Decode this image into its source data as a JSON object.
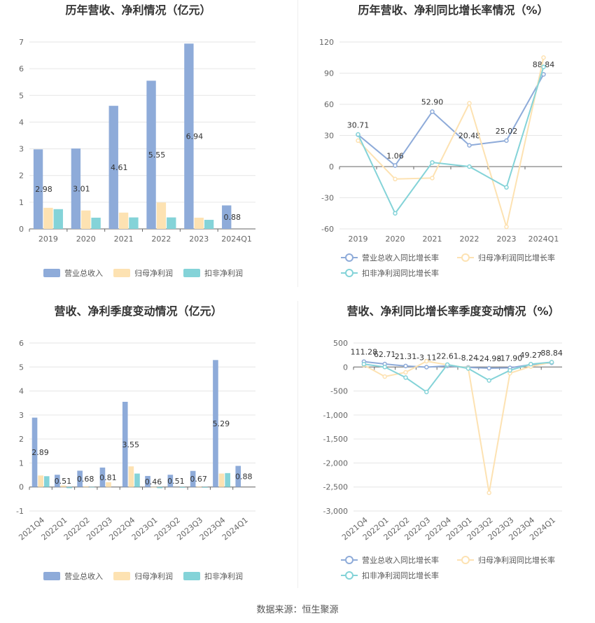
{
  "colors": {
    "revenue": "#8eabd9",
    "net_profit": "#fde2b2",
    "deducted_profit": "#84d3d8"
  },
  "source_text": "数据来源：恒生聚源",
  "chart_data": [
    {
      "type": "bar",
      "title": "历年营收、净利情况（亿元）",
      "categories": [
        "2019",
        "2020",
        "2021",
        "2022",
        "2023",
        "2024Q1"
      ],
      "ylim": [
        0,
        7
      ],
      "yticks": [
        0,
        1,
        2,
        3,
        4,
        5,
        6,
        7
      ],
      "series": [
        {
          "name": "营业总收入",
          "values": [
            2.98,
            3.01,
            4.61,
            5.55,
            6.94,
            0.88
          ],
          "labels": [
            "2.98",
            "3.01",
            "4.61",
            "5.55",
            "6.94",
            "0.88"
          ]
        },
        {
          "name": "归母净利润",
          "values": [
            0.79,
            0.69,
            0.61,
            0.99,
            0.42,
            0.0
          ]
        },
        {
          "name": "扣非净利润",
          "values": [
            0.74,
            0.42,
            0.43,
            0.43,
            0.34,
            0.0
          ]
        }
      ],
      "legend": "bottom"
    },
    {
      "type": "line",
      "title": "历年营收、净利同比增长率情况（%）",
      "categories": [
        "2019",
        "2020",
        "2021",
        "2022",
        "2023",
        "2024Q1"
      ],
      "ylim": [
        -60,
        120
      ],
      "yticks": [
        -60,
        -30,
        0,
        30,
        60,
        90,
        120
      ],
      "series": [
        {
          "name": "营业总收入同比增长率",
          "values": [
            30.71,
            1.06,
            52.9,
            20.48,
            25.02,
            88.84
          ],
          "labels": [
            "30.71",
            "1.06",
            "52.90",
            "20.48",
            "25.02",
            "88.84"
          ]
        },
        {
          "name": "归母净利润同比增长率",
          "values": [
            25,
            -12,
            -11,
            61,
            -58,
            105
          ]
        },
        {
          "name": "扣非净利润同比增长率",
          "values": [
            31,
            -45,
            4,
            0,
            -20,
            96
          ]
        }
      ],
      "legend": "bottom"
    },
    {
      "type": "bar",
      "title": "营收、净利季度变动情况（亿元）",
      "categories": [
        "2021Q4",
        "2022Q1",
        "2022Q2",
        "2022Q3",
        "2022Q4",
        "2023Q1",
        "2023Q2",
        "2023Q3",
        "2023Q4",
        "2024Q1"
      ],
      "ylim": [
        -1,
        6
      ],
      "yticks": [
        -1,
        0,
        1,
        2,
        3,
        4,
        5,
        6
      ],
      "series": [
        {
          "name": "营业总收入",
          "values": [
            2.89,
            0.51,
            0.68,
            0.81,
            3.55,
            0.46,
            0.51,
            0.67,
            5.29,
            0.88
          ],
          "labels": [
            "2.89",
            "0.51",
            "0.68",
            "0.81",
            "3.55",
            "0.46",
            "0.51",
            "0.67",
            "5.29",
            "0.88"
          ]
        },
        {
          "name": "归母净利润",
          "values": [
            0.48,
            0.06,
            0.03,
            0.2,
            0.86,
            -0.02,
            0.0,
            0.02,
            0.56,
            0.0
          ]
        },
        {
          "name": "扣非净利润",
          "values": [
            0.45,
            -0.05,
            -0.02,
            0.0,
            0.56,
            -0.05,
            -0.03,
            -0.03,
            0.58,
            0.0
          ]
        }
      ],
      "legend": "bottom"
    },
    {
      "type": "line",
      "title": "营收、净利同比增长率季度变动情况（%）",
      "categories": [
        "2021Q4",
        "2022Q1",
        "2022Q2",
        "2022Q3",
        "2022Q4",
        "2023Q1",
        "2023Q2",
        "2023Q3",
        "2023Q4",
        "2024Q1"
      ],
      "ylim": [
        -3000,
        500
      ],
      "yticks": [
        -3000,
        -2500,
        -2000,
        -1500,
        -1000,
        -500,
        0,
        500
      ],
      "ytick_labels": [
        "-3,000",
        "-2,500",
        "-2,000",
        "-1,500",
        "-1,000",
        "-500",
        "0",
        "500"
      ],
      "series": [
        {
          "name": "营业总收入同比增长率",
          "values": [
            111.28,
            62.71,
            21.31,
            -3.11,
            22.61,
            -8.24,
            -24.98,
            -17.9,
            49.27,
            88.84
          ],
          "labels": [
            "111.28",
            "62.71",
            "21.31",
            "-3.11",
            "22.61",
            "-8.24",
            "-24.98",
            "-17.90",
            "49.27",
            "88.84"
          ]
        },
        {
          "name": "归母净利润同比增长率",
          "values": [
            40,
            -200,
            -110,
            120,
            45,
            -20,
            -2620,
            -130,
            10,
            100
          ]
        },
        {
          "name": "扣非净利润同比增长率",
          "values": [
            60,
            0,
            -220,
            -520,
            50,
            -30,
            -280,
            -70,
            60,
            100
          ]
        }
      ],
      "legend": "bottom"
    }
  ]
}
